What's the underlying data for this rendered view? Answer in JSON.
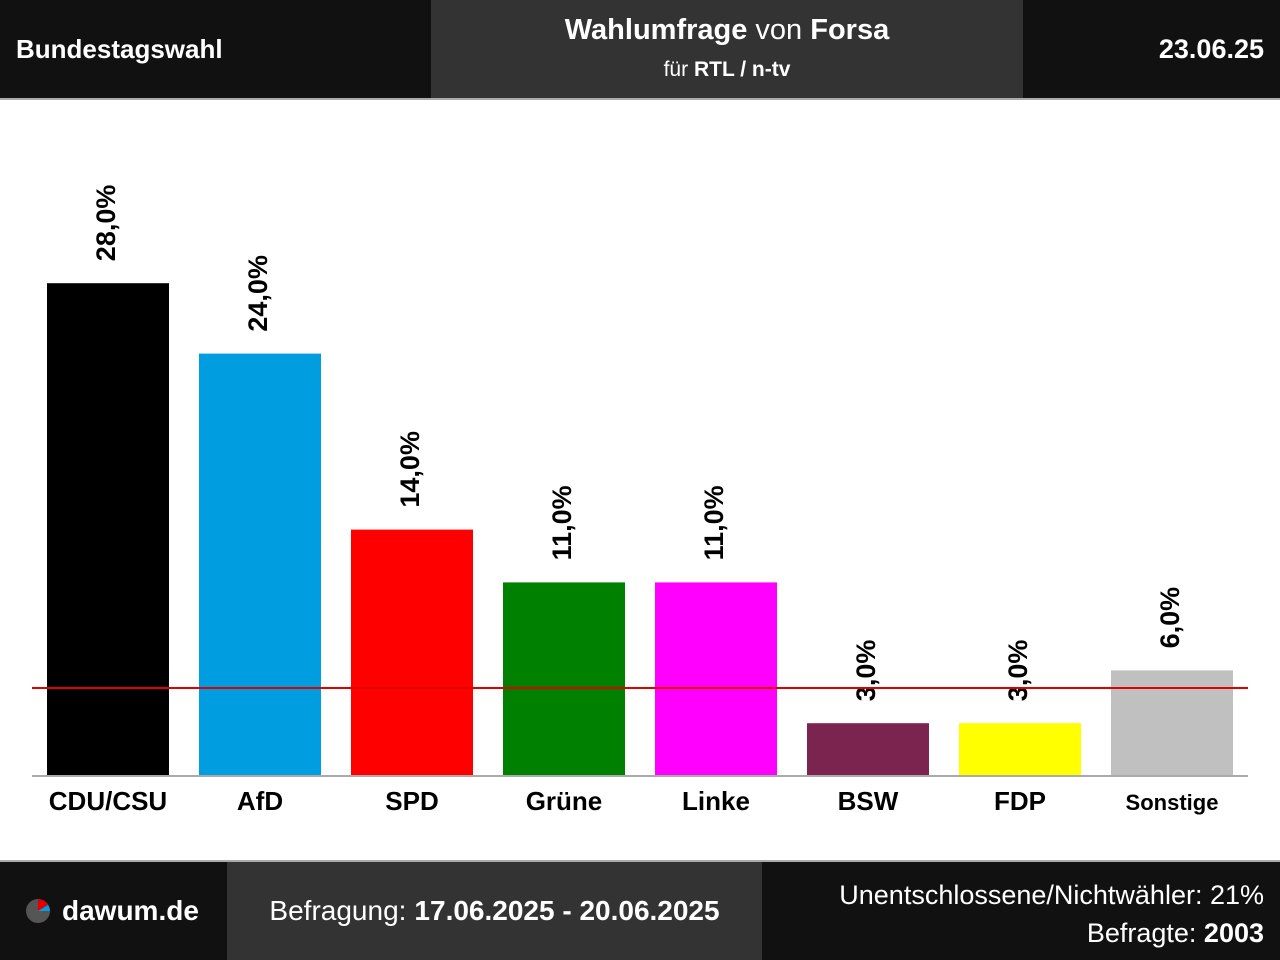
{
  "header": {
    "left_title": "Bundestagswahl",
    "center_title_bold": "Wahlumfrage",
    "center_title_mid": "von",
    "center_title_institute": "Forsa",
    "center_sub_prefix": "für",
    "center_sub_client": "RTL / n-tv",
    "date": "23.06.25"
  },
  "chart_data": {
    "type": "bar",
    "categories": [
      "CDU/CSU",
      "AfD",
      "SPD",
      "Grüne",
      "Linke",
      "BSW",
      "FDP",
      "Sonstige"
    ],
    "values": [
      28.0,
      24.0,
      14.0,
      11.0,
      11.0,
      3.0,
      3.0,
      6.0
    ],
    "value_labels": [
      "28,0%",
      "24,0%",
      "14,0%",
      "11,0%",
      "11,0%",
      "3,0%",
      "3,0%",
      "6,0%"
    ],
    "colors": [
      "#000000",
      "#009ee0",
      "#ff0000",
      "#008000",
      "#ff00ff",
      "#7b2450",
      "#ffff00",
      "#c0c0c0"
    ],
    "threshold": 5,
    "threshold_color": "#e00000",
    "ylim": [
      0,
      35
    ],
    "grid": false,
    "legend": "none"
  },
  "footer": {
    "logo_text": "dawum.de",
    "survey_label": "Befragung:",
    "survey_period": "17.06.2025 - 20.06.2025",
    "undecided_label": "Unentschlossene/Nichtwähler: 21%",
    "respondents_label": "Befragte:",
    "respondents_value": "2003"
  }
}
